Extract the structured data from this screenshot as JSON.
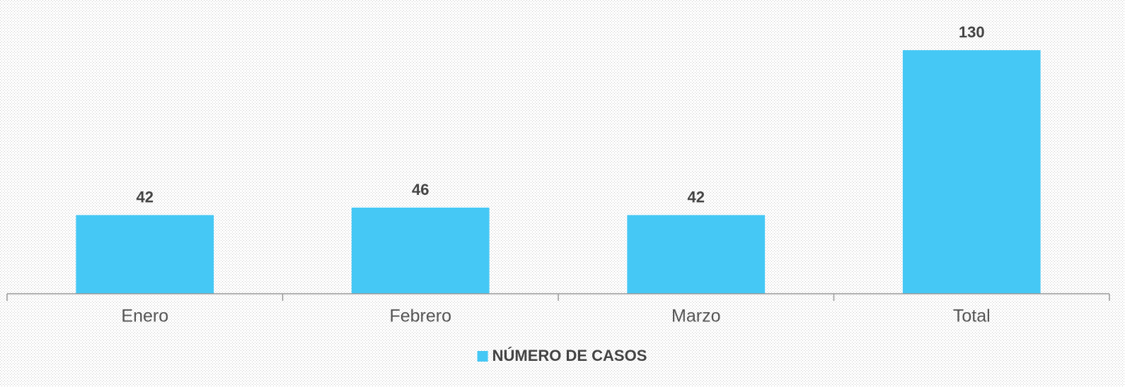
{
  "chart_data": {
    "type": "bar",
    "categories": [
      "Enero",
      "Febrero",
      "Marzo",
      "Total"
    ],
    "series": [
      {
        "name": "NÚMERO DE CASOS",
        "color": "#45c8f5",
        "values": [
          42,
          46,
          42,
          130
        ]
      }
    ],
    "ylim": [
      0,
      150
    ],
    "grid": false,
    "legend": "bottom"
  }
}
